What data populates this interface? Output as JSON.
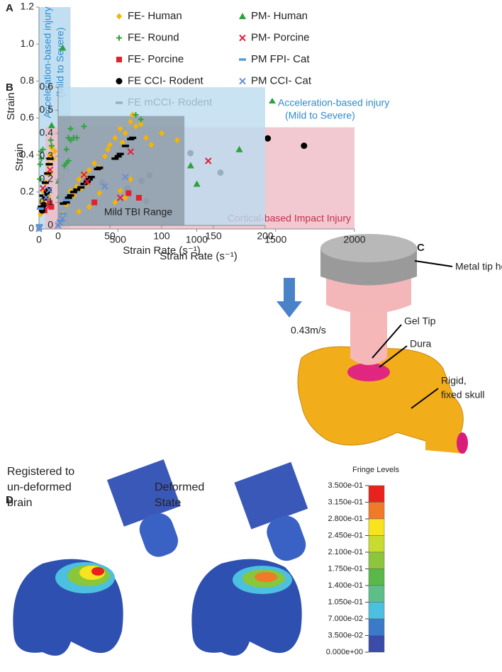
{
  "chart_data": [
    {
      "type": "scatter",
      "panel_label": "A",
      "xlabel": "Strain Rate (s⁻¹)",
      "ylabel": "Strain",
      "xlim": [
        0,
        2000
      ],
      "xticks": [
        0,
        500,
        1000,
        1500,
        2000
      ],
      "ylim": [
        0,
        1.2
      ],
      "yticks": [
        0,
        0.2,
        0.4,
        0.6,
        0.8,
        {
          "value": 1,
          "label": "1.0"
        },
        1.2
      ],
      "regions": [
        {
          "label_lines": [
            "Acceleration-based injury",
            "(Mild to Severe)"
          ],
          "xlim": [
            0,
            200
          ],
          "ylim": [
            0,
            1.2
          ],
          "color": "#b3d7ef",
          "label_color": "#2f8ccf"
        },
        {
          "label_lines": [
            "Cortical-based Impact Injury"
          ],
          "xlim": [
            40,
            2000
          ],
          "ylim": [
            0,
            0.55
          ],
          "color": "#efbcc6",
          "label_color": "#c4304c"
        }
      ],
      "series": [
        {
          "name": "FE- Human",
          "color": "#f5b400",
          "marker": "diamond",
          "x": [
            10,
            20,
            30,
            40,
            50,
            60,
            70,
            80,
            90,
            100,
            70,
            60
          ],
          "values": [
            0.08,
            0.15,
            0.2,
            0.25,
            0.3,
            0.35,
            0.4,
            0.44,
            0.38,
            0.42,
            0.3,
            0.18
          ]
        },
        {
          "name": "FE- Round",
          "color": "#2ca33a",
          "marker": "plus",
          "x": [
            5,
            8,
            12,
            15,
            25,
            75,
            80
          ],
          "values": [
            0.27,
            0.35,
            0.42,
            0.38,
            0.43,
            0.48,
            0.45
          ]
        },
        {
          "name": "FE- Porcine",
          "color": "#e3202b",
          "marker": "square",
          "x": [
            35,
            68,
            78
          ],
          "values": [
            0.1,
            0.14,
            0.12
          ]
        },
        {
          "name": "FE CCI- Rodent",
          "color": "#000000",
          "marker": "circle",
          "x": [
            20,
            30,
            40,
            50,
            60,
            400,
            560,
            650,
            680,
            700,
            960,
            1150,
            1450,
            1680
          ],
          "values": [
            0.1,
            0.13,
            0.17,
            0.2,
            0.21,
            0.25,
            0.22,
            0.26,
            0.15,
            0.29,
            0.41,
            0.305,
            0.49,
            0.45
          ]
        },
        {
          "name": "FE mCCI- Rodent",
          "color": "#000000",
          "marker": "dash",
          "x": [
            15,
            25,
            40,
            55,
            65,
            70
          ],
          "values": [
            0.12,
            0.18,
            0.25,
            0.3,
            0.35,
            0.38
          ]
        },
        {
          "name": "PM- Human",
          "color": "#2ca33a",
          "marker": "triangle",
          "x": [
            80,
            150,
            170,
            130,
            125
          ],
          "values": [
            0.56,
            0.98,
            0.33,
            0.18,
            0.26
          ]
        },
        {
          "name": "PM- Porcine",
          "color": "#e3203a",
          "marker": "x",
          "x": [
            25,
            60,
            70,
            145
          ],
          "values": [
            0.22,
            0.12,
            0.32,
            0.28
          ]
        },
        {
          "name": "PM FPI- Cat",
          "color": "#5b9bd5",
          "marker": "dash",
          "x": [
            8,
            2
          ],
          "values": [
            0.11,
            0.02
          ]
        },
        {
          "name": "PM CCI- Cat",
          "color": "#6a8fd0",
          "marker": "x",
          "x": [
            0,
            2,
            45,
            65
          ],
          "values": [
            0,
            0.01,
            0.17,
            0.21
          ]
        }
      ]
    },
    {
      "type": "scatter",
      "panel_label": "B",
      "xlabel": "Strain Rate (s⁻¹)",
      "ylabel": "Strain",
      "xlim": [
        0,
        200
      ],
      "xticks": [
        0,
        50,
        100,
        150,
        200
      ],
      "ylim": [
        0,
        0.6
      ],
      "yticks": [
        0,
        0.1,
        0.2,
        0.3,
        0.4,
        0.5,
        0.6
      ],
      "regions": [
        {
          "label_lines": [
            "Acceleration-based injury",
            "(Mild to Severe)"
          ],
          "xlim": [
            0,
            200
          ],
          "ylim": [
            0,
            0.6
          ],
          "color": "#bcdcf0",
          "label_color": "#2f8ccf"
        },
        {
          "label_lines": [
            "Mild TBI Range"
          ],
          "xlim": [
            0,
            122
          ],
          "ylim": [
            0,
            0.475
          ],
          "color": "#8c98a4",
          "label_color": "#222222"
        }
      ],
      "series": [
        {
          "color": "#f5b400",
          "marker": "diamond",
          "x": [
            5,
            8,
            10,
            12,
            15,
            18,
            20,
            22,
            25,
            28,
            30,
            35,
            40,
            45,
            48,
            50,
            55,
            60,
            62,
            65,
            70,
            72,
            75,
            80,
            85,
            90,
            100,
            115,
            60,
            65,
            70,
            30,
            20,
            55,
            40
          ],
          "values": [
            0.05,
            0.09,
            0.12,
            0.15,
            0.13,
            0.17,
            0.2,
            0.16,
            0.22,
            0.18,
            0.24,
            0.27,
            0.25,
            0.3,
            0.33,
            0.35,
            0.38,
            0.42,
            0.36,
            0.4,
            0.45,
            0.48,
            0.43,
            0.44,
            0.38,
            0.35,
            0.4,
            0.37,
            0.15,
            0.12,
            0.2,
            0.08,
            0.06,
            0.1,
            0.14
          ]
        },
        {
          "color": "#2ca33a",
          "marker": "plus",
          "x": [
            8,
            10,
            12,
            15,
            18,
            12,
            25,
            8,
            10,
            6,
            75,
            80
          ],
          "values": [
            0.33,
            0.38,
            0.37,
            0.38,
            0.38,
            0.42,
            0.43,
            0.27,
            0.28,
            0.26,
            0.48,
            0.46
          ]
        },
        {
          "color": "#e3202b",
          "marker": "square",
          "x": [
            35,
            68,
            78
          ],
          "values": [
            0.1,
            0.14,
            0.12
          ]
        },
        {
          "color": "#000000",
          "marker": "dash",
          "x": [
            5,
            8,
            10,
            12,
            15,
            18,
            22,
            25,
            28,
            30,
            32,
            38,
            40,
            55,
            58,
            60,
            65,
            70,
            72
          ],
          "values": [
            0.095,
            0.1,
            0.12,
            0.13,
            0.145,
            0.155,
            0.165,
            0.18,
            0.19,
            0.2,
            0.21,
            0.245,
            0.25,
            0.29,
            0.3,
            0.31,
            0.345,
            0.375,
            0.38
          ]
        },
        {
          "color": "#2ca33a",
          "marker": "triangle",
          "x": [
            128,
            134,
            175
          ],
          "values": [
            0.26,
            0.18,
            0.33
          ]
        },
        {
          "color": "#e3203a",
          "marker": "x",
          "x": [
            25,
            28,
            60,
            70,
            145
          ],
          "values": [
            0.22,
            0.19,
            0.12,
            0.32,
            0.28
          ]
        },
        {
          "color": "#5b9bd5",
          "marker": "dash",
          "x": [
            8,
            2,
            5
          ],
          "values": [
            0.11,
            0.02,
            0.05
          ]
        },
        {
          "color": "#6a8fd0",
          "marker": "x",
          "x": [
            0,
            2,
            4,
            45,
            65
          ],
          "values": [
            0,
            0.01,
            0.03,
            0.17,
            0.21
          ]
        }
      ]
    }
  ],
  "panel_c": {
    "label": "C",
    "velocity": "0.43m/s",
    "holder": "Metal tip holder",
    "gel_tip": "Gel Tip",
    "dura": "Dura",
    "skull_lines": [
      "Rigid,",
      "fixed skull"
    ]
  },
  "panel_d": {
    "label": "D",
    "left_lines": [
      "Registered to",
      "un-deformed",
      "brain"
    ],
    "right_lines": [
      "Deformed",
      "State"
    ],
    "fringe_title": "Fringe Levels",
    "fringe_labels": [
      "3.500e-01",
      "3.150e-01",
      "2.800e-01",
      "2.450e-01",
      "2.100e-01",
      "1.750e-01",
      "1.400e-01",
      "1.050e-01",
      "7.000e-02",
      "3.500e-02",
      "0.000e+00"
    ],
    "fringe_colors": [
      "#e8221c",
      "#f07a28",
      "#f7e41e",
      "#c8dc30",
      "#8cc63c",
      "#5ab848",
      "#5cbf8a",
      "#4cc0e0",
      "#3a7ac8",
      "#3a4ba8"
    ]
  }
}
